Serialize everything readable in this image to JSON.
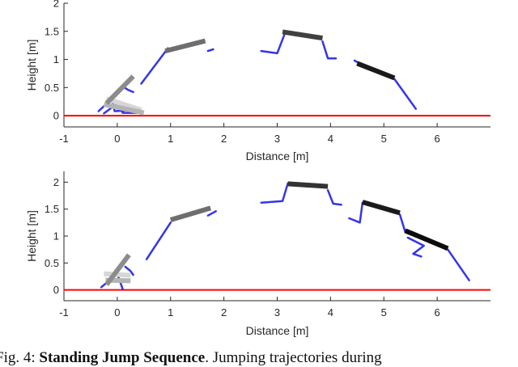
{
  "chart_data": [
    {
      "type": "line",
      "xlabel": "Distance [m]",
      "ylabel": "Height [m]",
      "xlim": [
        -1,
        7
      ],
      "ylim": [
        -0.2,
        2.0
      ],
      "x_ticks": [
        "-1",
        "0",
        "1",
        "2",
        "3",
        "4",
        "5",
        "6"
      ],
      "y_ticks": [
        "0",
        "0.5",
        "1",
        "1.5",
        "2"
      ],
      "ground": {
        "y": 0,
        "color": "#ff0000"
      },
      "torso_segments": [
        {
          "from": [
            -0.2,
            0.3
          ],
          "to": [
            0.45,
            0.1
          ],
          "color": "#d6d6d6"
        },
        {
          "from": [
            -0.25,
            0.2
          ],
          "to": [
            0.5,
            0.05
          ],
          "color": "#b4b4b4"
        },
        {
          "from": [
            -0.2,
            0.22
          ],
          "to": [
            0.3,
            0.7
          ],
          "color": "#8c8c8c"
        },
        {
          "from": [
            0.9,
            1.15
          ],
          "to": [
            1.65,
            1.33
          ],
          "color": "#6e6e6e"
        },
        {
          "from": [
            3.1,
            1.49
          ],
          "to": [
            3.85,
            1.38
          ],
          "color": "#404040"
        },
        {
          "from": [
            4.5,
            0.93
          ],
          "to": [
            5.2,
            0.67
          ],
          "color": "#1a1a1a"
        }
      ],
      "leg_paths": [
        [
          [
            -0.35,
            0.08
          ],
          [
            -0.1,
            0.3
          ],
          [
            -0.05,
            0.08
          ],
          [
            0.35,
            0.1
          ]
        ],
        [
          [
            -0.25,
            0.04
          ],
          [
            0.05,
            0.25
          ],
          [
            0.1,
            0.05
          ],
          [
            0.4,
            0.05
          ]
        ],
        [
          [
            0.1,
            0.52
          ],
          [
            0.2,
            0.46
          ],
          [
            0.3,
            0.42
          ]
        ],
        [
          [
            0.45,
            0.57
          ],
          [
            0.95,
            1.2
          ]
        ],
        [
          [
            1.7,
            1.15
          ],
          [
            1.8,
            1.18
          ]
        ],
        [
          [
            2.7,
            1.15
          ],
          [
            3.0,
            1.11
          ],
          [
            3.15,
            1.48
          ]
        ],
        [
          [
            3.85,
            1.32
          ],
          [
            3.95,
            1.02
          ],
          [
            4.1,
            1.02
          ]
        ],
        [
          [
            4.45,
            0.98
          ],
          [
            4.6,
            0.9
          ]
        ],
        [
          [
            5.2,
            0.65
          ],
          [
            5.6,
            0.12
          ]
        ]
      ],
      "leg_color": "#1f1fe6"
    },
    {
      "type": "line",
      "xlabel": "Distance [m]",
      "ylabel": "Height [m]",
      "xlim": [
        -1,
        7
      ],
      "ylim": [
        -0.2,
        2.2
      ],
      "x_ticks": [
        "-1",
        "0",
        "1",
        "2",
        "3",
        "4",
        "5",
        "6"
      ],
      "y_ticks": [
        "0",
        "0.5",
        "1",
        "1.5",
        "2"
      ],
      "ground": {
        "y": 0,
        "color": "#ff0000"
      },
      "torso_segments": [
        {
          "from": [
            -0.25,
            0.3
          ],
          "to": [
            0.25,
            0.27
          ],
          "color": "#d6d6d6"
        },
        {
          "from": [
            -0.22,
            0.18
          ],
          "to": [
            0.25,
            0.17
          ],
          "color": "#b4b4b4"
        },
        {
          "from": [
            -0.2,
            0.1
          ],
          "to": [
            0.22,
            0.65
          ],
          "color": "#8c8c8c"
        },
        {
          "from": [
            1.0,
            1.3
          ],
          "to": [
            1.75,
            1.52
          ],
          "color": "#6e6e6e"
        },
        {
          "from": [
            3.2,
            1.97
          ],
          "to": [
            3.95,
            1.92
          ],
          "color": "#333333"
        },
        {
          "from": [
            4.6,
            1.63
          ],
          "to": [
            5.3,
            1.43
          ],
          "color": "#1a1a1a"
        },
        {
          "from": [
            5.4,
            1.1
          ],
          "to": [
            6.2,
            0.77
          ],
          "color": "#0d0d0d"
        }
      ],
      "leg_paths": [
        [
          [
            -0.3,
            0.05
          ],
          [
            0.0,
            0.3
          ],
          [
            0.1,
            0.02
          ]
        ],
        [
          [
            0.15,
            0.43
          ],
          [
            0.25,
            0.35
          ],
          [
            0.3,
            0.28
          ]
        ],
        [
          [
            0.55,
            0.57
          ],
          [
            1.0,
            1.25
          ]
        ],
        [
          [
            1.7,
            1.38
          ],
          [
            1.85,
            1.46
          ]
        ],
        [
          [
            2.7,
            1.62
          ],
          [
            3.1,
            1.65
          ],
          [
            3.2,
            1.98
          ]
        ],
        [
          [
            3.95,
            1.85
          ],
          [
            4.05,
            1.6
          ],
          [
            4.2,
            1.58
          ]
        ],
        [
          [
            4.35,
            1.33
          ],
          [
            4.55,
            1.25
          ],
          [
            4.6,
            1.62
          ]
        ],
        [
          [
            5.3,
            1.4
          ],
          [
            5.4,
            1.08
          ],
          [
            5.5,
            1.05
          ]
        ],
        [
          [
            5.45,
            0.97
          ],
          [
            5.75,
            0.82
          ],
          [
            5.55,
            0.67
          ],
          [
            5.7,
            0.62
          ]
        ],
        [
          [
            6.2,
            0.75
          ],
          [
            6.6,
            0.18
          ]
        ]
      ],
      "leg_color": "#1f1fe6"
    }
  ],
  "caption": {
    "prefix": "Fig. 4: ",
    "bold": "Standing Jump Sequence",
    "rest": ". Jumping trajectories during"
  }
}
